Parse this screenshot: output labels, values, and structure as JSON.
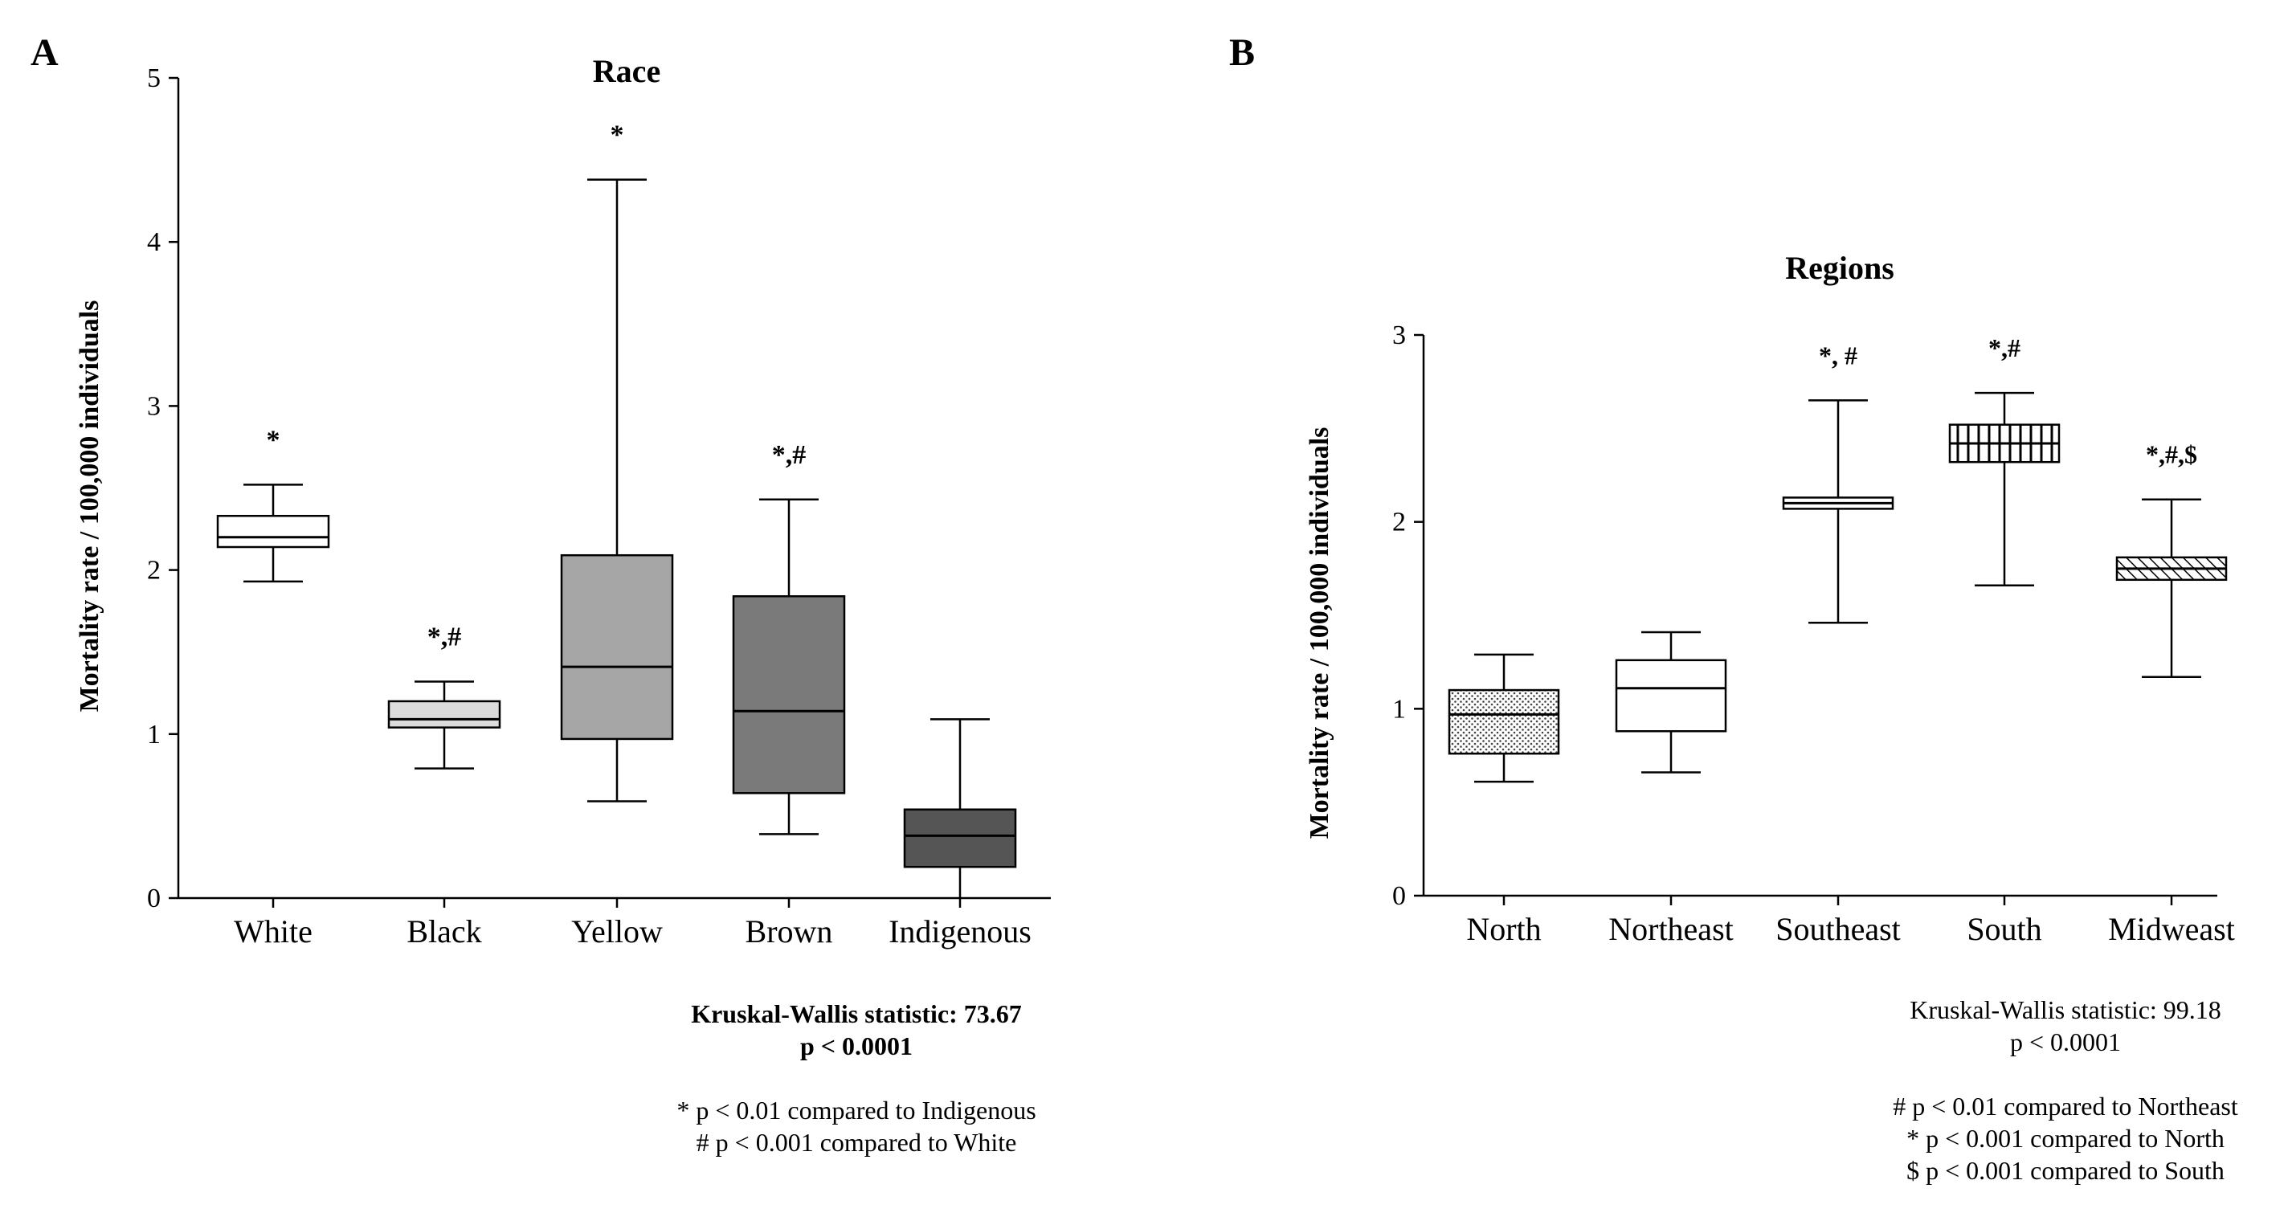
{
  "panels": [
    {
      "letter": "A",
      "title": "Race",
      "ylabel": "Mortality rate / 100,000 individuals",
      "stats_line1": "Kruskal-Wallis statistic: 73.67",
      "stats_line2": "p < 0.0001",
      "notes": [
        "* p < 0.01 compared to Indigenous",
        "# p < 0.001 compared to White"
      ]
    },
    {
      "letter": "B",
      "title": "Regions",
      "ylabel": "Mortality rate / 100,000 individuals",
      "stats_line1": "Kruskal-Wallis statistic: 99.18",
      "stats_line2": "p < 0.0001",
      "notes": [
        "# p < 0.01 compared to Northeast",
        "* p < 0.001 compared to North",
        "$ p < 0.001 compared to South"
      ]
    }
  ],
  "chart_data": [
    {
      "type": "box",
      "title": "Race",
      "xlabel": "",
      "ylabel": "Mortality rate / 100,000 individuals",
      "ylim": [
        0,
        5
      ],
      "yticks": [
        "0",
        "1",
        "2",
        "3",
        "4",
        "5"
      ],
      "grid": false,
      "categories": [
        "White",
        "Black",
        "Yellow",
        "Brown",
        "Indigenous"
      ],
      "boxes": [
        {
          "category": "White",
          "min": 1.93,
          "q1": 2.14,
          "median": 2.2,
          "q3": 2.33,
          "max": 2.52,
          "annotation": "*",
          "fill": "#ffffff",
          "pattern": "none"
        },
        {
          "category": "Black",
          "min": 0.79,
          "q1": 1.04,
          "median": 1.09,
          "q3": 1.2,
          "max": 1.32,
          "annotation": "*,#",
          "fill": "#dcdcdc",
          "pattern": "none"
        },
        {
          "category": "Yellow",
          "min": 0.59,
          "q1": 0.97,
          "median": 1.41,
          "q3": 2.09,
          "max": 4.38,
          "annotation": "*",
          "fill": "#a6a6a6",
          "pattern": "none"
        },
        {
          "category": "Brown",
          "min": 0.39,
          "q1": 0.64,
          "median": 1.14,
          "q3": 1.84,
          "max": 2.43,
          "annotation": "*,#",
          "fill": "#7a7a7a",
          "pattern": "none"
        },
        {
          "category": "Indigenous",
          "min": 0.0,
          "q1": 0.19,
          "median": 0.38,
          "q3": 0.54,
          "max": 1.09,
          "annotation": "",
          "fill": "#555555",
          "pattern": "none"
        }
      ]
    },
    {
      "type": "box",
      "title": "Regions",
      "xlabel": "",
      "ylabel": "Mortality rate / 100,000 individuals",
      "ylim": [
        0,
        3
      ],
      "yticks": [
        "0",
        "1",
        "2",
        "3"
      ],
      "grid": false,
      "categories": [
        "North",
        "Northeast",
        "Southeast",
        "South",
        "Midweast"
      ],
      "boxes": [
        {
          "category": "North",
          "min": 0.61,
          "q1": 0.76,
          "median": 0.97,
          "q3": 1.1,
          "max": 1.29,
          "annotation": "",
          "fill": "#ffffff",
          "pattern": "dots"
        },
        {
          "category": "Northeast",
          "min": 0.66,
          "q1": 0.88,
          "median": 1.11,
          "q3": 1.26,
          "max": 1.41,
          "annotation": "",
          "fill": "#ffffff",
          "pattern": "none"
        },
        {
          "category": "Southeast",
          "min": 1.46,
          "q1": 2.07,
          "median": 2.1,
          "q3": 2.13,
          "max": 2.65,
          "annotation": "*, #",
          "fill": "#ffffff",
          "pattern": "none"
        },
        {
          "category": "South",
          "min": 1.66,
          "q1": 2.32,
          "median": 2.42,
          "q3": 2.52,
          "max": 2.69,
          "annotation": "*,#",
          "fill": "#ffffff",
          "pattern": "vlines"
        },
        {
          "category": "Midweast",
          "min": 1.17,
          "q1": 1.69,
          "median": 1.75,
          "q3": 1.81,
          "max": 2.12,
          "annotation": "*,#,$",
          "fill": "#ffffff",
          "pattern": "diag"
        }
      ]
    }
  ]
}
